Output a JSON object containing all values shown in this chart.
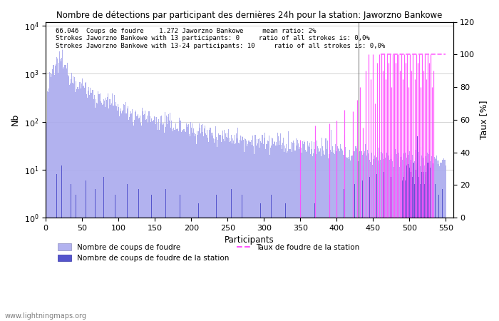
{
  "title": "Nombre de détections par participant des dernières 24h pour la station: Jaworzno Bankowe",
  "annotation_lines": [
    "66.046  Coups de foudre    1.272 Jaworzno Bankowe     mean ratio: 2%",
    "Strokes Jaworzno Bankowe with 13 participants: 0     ratio of all strokes is: 0,0%",
    "Strokes Jaworzno Bankowe with 13-24 participants: 10     ratio of all strokes is: 0,0%"
  ],
  "xlabel": "Participants",
  "ylabel_left": "Nb",
  "ylabel_right": "Taux [%]",
  "xlim": [
    0,
    560
  ],
  "ylim_right": [
    0,
    120
  ],
  "yticks_right": [
    0,
    20,
    40,
    60,
    80,
    100,
    120
  ],
  "bar_color_all": "#aaaaee",
  "bar_color_station": "#5555cc",
  "line_color_taux": "#ff55ff",
  "vline_color": "#444444",
  "watermark": "www.lightningmaps.org",
  "legend_labels": [
    "Nombre de coups de foudre",
    "Nombre de coups de foudre de la station",
    "Taux de foudre de la station"
  ],
  "legend_colors": [
    "#aaaaee",
    "#5555cc",
    "#ff55ff"
  ],
  "n_participants": 550,
  "vline_x": 430,
  "taux_spike_start": 420,
  "taux_dash_start": 460
}
